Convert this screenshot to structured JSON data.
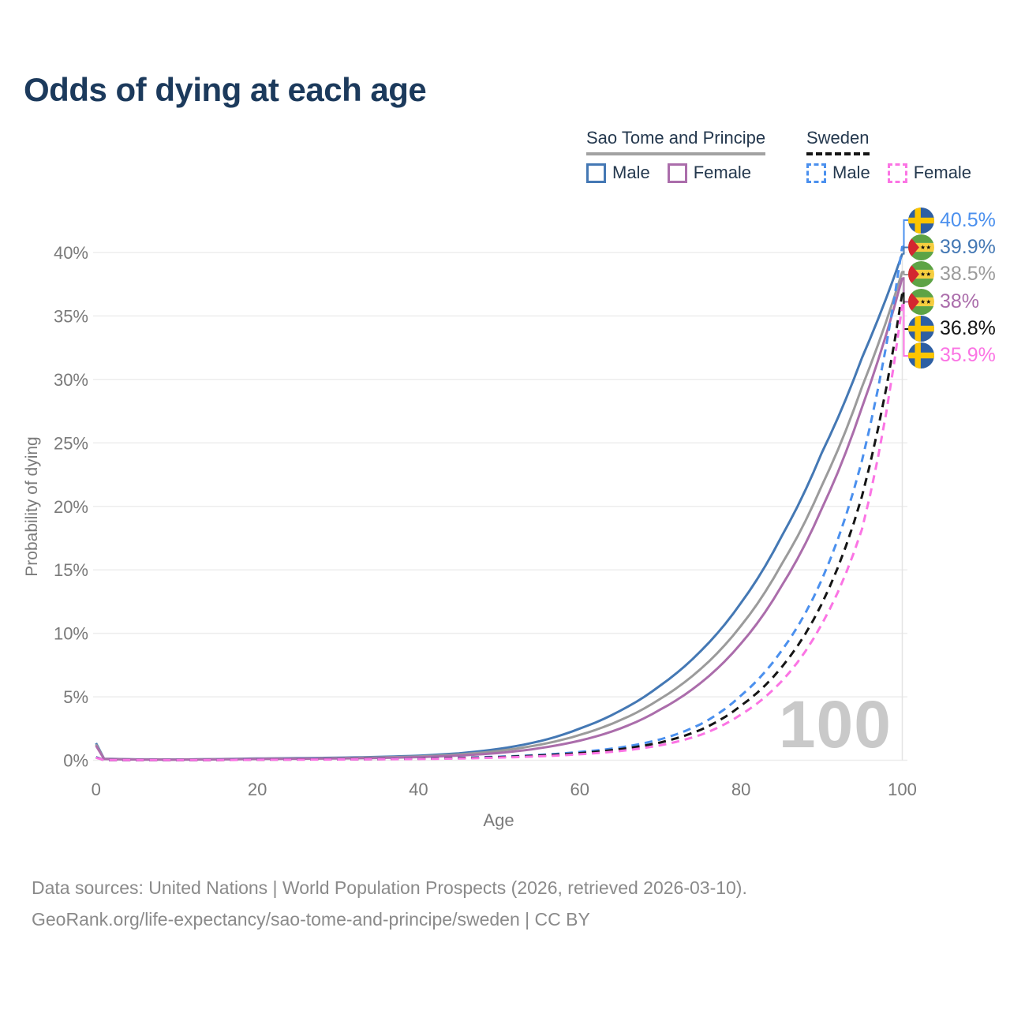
{
  "title": "Odds of dying at each age",
  "legend": {
    "groups": [
      {
        "label": "Sao Tome and Principe",
        "line_style": "solid",
        "underline_color": "#a2a2a2",
        "items": [
          {
            "label": "Male",
            "color": "#4478b4"
          },
          {
            "label": "Female",
            "color": "#ab6dab"
          }
        ]
      },
      {
        "label": "Sweden",
        "line_style": "dashed",
        "underline_color": "#141414",
        "items": [
          {
            "label": "Male",
            "color": "#4b90ee"
          },
          {
            "label": "Female",
            "color": "#fb74e4"
          }
        ]
      }
    ]
  },
  "axes": {
    "x": {
      "label": "Age",
      "min": 0,
      "max": 100,
      "ticks": [
        "0",
        "20",
        "40",
        "60",
        "80",
        "100"
      ]
    },
    "y": {
      "label": "Probability of dying",
      "min": 0,
      "max": 40,
      "ticks": [
        "0%",
        "5%",
        "10%",
        "15%",
        "20%",
        "25%",
        "30%",
        "35%",
        "40%"
      ]
    }
  },
  "watermark_hover_age": "100",
  "chart_data": {
    "type": "line",
    "title": "Odds of dying at each age",
    "xlabel": "Age",
    "ylabel": "Probability of dying",
    "x_range": [
      0,
      100
    ],
    "y_range_percent": [
      0,
      40
    ],
    "grid": "horizontal",
    "legend_position": "top-right",
    "hover_age": 100,
    "series": [
      {
        "id": "sao-tome-male",
        "country": "Sao Tome and Principe",
        "sex": "Male",
        "style": "solid",
        "color": "#4478b4",
        "points": [
          [
            0,
            1.35
          ],
          [
            1,
            0.12
          ],
          [
            5,
            0.07
          ],
          [
            10,
            0.06
          ],
          [
            15,
            0.09
          ],
          [
            20,
            0.14
          ],
          [
            25,
            0.17
          ],
          [
            30,
            0.2
          ],
          [
            35,
            0.26
          ],
          [
            40,
            0.36
          ],
          [
            45,
            0.55
          ],
          [
            50,
            0.9
          ],
          [
            55,
            1.5
          ],
          [
            60,
            2.5
          ],
          [
            65,
            3.9
          ],
          [
            70,
            5.9
          ],
          [
            75,
            8.6
          ],
          [
            80,
            12.4
          ],
          [
            85,
            17.6
          ],
          [
            90,
            24.2
          ],
          [
            95,
            31.7
          ],
          [
            100,
            39.9
          ]
        ]
      },
      {
        "id": "sao-tome-total",
        "country": "Sao Tome and Principe",
        "sex": "Both",
        "style": "solid",
        "color": "#9b9b9b",
        "points": [
          [
            0,
            1.25
          ],
          [
            1,
            0.11
          ],
          [
            5,
            0.06
          ],
          [
            10,
            0.05
          ],
          [
            15,
            0.08
          ],
          [
            20,
            0.12
          ],
          [
            25,
            0.14
          ],
          [
            30,
            0.17
          ],
          [
            35,
            0.22
          ],
          [
            40,
            0.3
          ],
          [
            45,
            0.46
          ],
          [
            50,
            0.74
          ],
          [
            55,
            1.22
          ],
          [
            60,
            2.0
          ],
          [
            65,
            3.15
          ],
          [
            70,
            4.85
          ],
          [
            75,
            7.2
          ],
          [
            80,
            10.6
          ],
          [
            85,
            15.4
          ],
          [
            90,
            21.6
          ],
          [
            95,
            29.4
          ],
          [
            100,
            38.5
          ]
        ]
      },
      {
        "id": "sao-tome-female",
        "country": "Sao Tome and Principe",
        "sex": "Female",
        "style": "solid",
        "color": "#ab6dab",
        "points": [
          [
            0,
            1.15
          ],
          [
            1,
            0.1
          ],
          [
            5,
            0.06
          ],
          [
            10,
            0.05
          ],
          [
            15,
            0.07
          ],
          [
            20,
            0.1
          ],
          [
            25,
            0.12
          ],
          [
            30,
            0.14
          ],
          [
            35,
            0.18
          ],
          [
            40,
            0.25
          ],
          [
            45,
            0.37
          ],
          [
            50,
            0.58
          ],
          [
            55,
            0.95
          ],
          [
            60,
            1.55
          ],
          [
            65,
            2.5
          ],
          [
            70,
            4.0
          ],
          [
            75,
            6.1
          ],
          [
            80,
            9.2
          ],
          [
            85,
            13.7
          ],
          [
            90,
            19.8
          ],
          [
            95,
            27.8
          ],
          [
            100,
            38.0
          ]
        ]
      },
      {
        "id": "sweden-male",
        "country": "Sweden",
        "sex": "Male",
        "style": "dashed",
        "color": "#4b90ee",
        "points": [
          [
            0,
            0.25
          ],
          [
            1,
            0.02
          ],
          [
            5,
            0.01
          ],
          [
            10,
            0.01
          ],
          [
            15,
            0.03
          ],
          [
            20,
            0.06
          ],
          [
            25,
            0.07
          ],
          [
            30,
            0.08
          ],
          [
            35,
            0.1
          ],
          [
            40,
            0.13
          ],
          [
            45,
            0.19
          ],
          [
            50,
            0.28
          ],
          [
            55,
            0.42
          ],
          [
            60,
            0.65
          ],
          [
            65,
            1.0
          ],
          [
            70,
            1.65
          ],
          [
            75,
            2.85
          ],
          [
            80,
            5.1
          ],
          [
            85,
            8.6
          ],
          [
            90,
            14.2
          ],
          [
            95,
            23.6
          ],
          [
            100,
            40.5
          ]
        ]
      },
      {
        "id": "sweden-total",
        "country": "Sweden",
        "sex": "Both",
        "style": "dashed",
        "color": "#151515",
        "points": [
          [
            0,
            0.22
          ],
          [
            1,
            0.02
          ],
          [
            5,
            0.01
          ],
          [
            10,
            0.01
          ],
          [
            15,
            0.02
          ],
          [
            20,
            0.05
          ],
          [
            25,
            0.06
          ],
          [
            30,
            0.07
          ],
          [
            35,
            0.09
          ],
          [
            40,
            0.12
          ],
          [
            45,
            0.17
          ],
          [
            50,
            0.25
          ],
          [
            55,
            0.37
          ],
          [
            60,
            0.56
          ],
          [
            65,
            0.87
          ],
          [
            70,
            1.4
          ],
          [
            75,
            2.4
          ],
          [
            80,
            4.3
          ],
          [
            85,
            7.3
          ],
          [
            90,
            12.3
          ],
          [
            95,
            20.8
          ],
          [
            100,
            36.8
          ]
        ]
      },
      {
        "id": "sweden-female",
        "country": "Sweden",
        "sex": "Female",
        "style": "dashed",
        "color": "#fb74e4",
        "points": [
          [
            0,
            0.2
          ],
          [
            1,
            0.02
          ],
          [
            5,
            0.01
          ],
          [
            10,
            0.01
          ],
          [
            15,
            0.02
          ],
          [
            20,
            0.04
          ],
          [
            25,
            0.05
          ],
          [
            30,
            0.06
          ],
          [
            35,
            0.08
          ],
          [
            40,
            0.1
          ],
          [
            45,
            0.14
          ],
          [
            50,
            0.21
          ],
          [
            55,
            0.31
          ],
          [
            60,
            0.47
          ],
          [
            65,
            0.73
          ],
          [
            70,
            1.18
          ],
          [
            75,
            2.0
          ],
          [
            80,
            3.6
          ],
          [
            85,
            6.2
          ],
          [
            90,
            10.7
          ],
          [
            95,
            18.2
          ],
          [
            100,
            35.9
          ]
        ]
      }
    ],
    "end_labels": [
      {
        "text": "40.5%",
        "flag": "sweden",
        "series": "sweden-male",
        "color": "#4b90ee"
      },
      {
        "text": "39.9%",
        "flag": "sao-tome",
        "series": "sao-tome-male",
        "color": "#4478b4"
      },
      {
        "text": "38.5%",
        "flag": "sao-tome",
        "series": "sao-tome-total",
        "color": "#9b9b9b"
      },
      {
        "text": "38%",
        "flag": "sao-tome",
        "series": "sao-tome-female",
        "color": "#ab6dab"
      },
      {
        "text": "36.8%",
        "flag": "sweden",
        "series": "sweden-total",
        "color": "#151515"
      },
      {
        "text": "35.9%",
        "flag": "sweden",
        "series": "sweden-female",
        "color": "#fb74e4"
      }
    ]
  },
  "colors": {
    "title": "#1c3a5c",
    "axis_text": "#7a7a7a",
    "gridline": "#ededed",
    "watermark": "#c9c9c9",
    "footer_text": "#8a8a8a"
  },
  "footer": {
    "line1": "Data sources: United Nations | World Population Prospects (2026, retrieved 2026-03-10).",
    "line2": "GeoRank.org/life-expectancy/sao-tome-and-principe/sweden | CC BY"
  }
}
